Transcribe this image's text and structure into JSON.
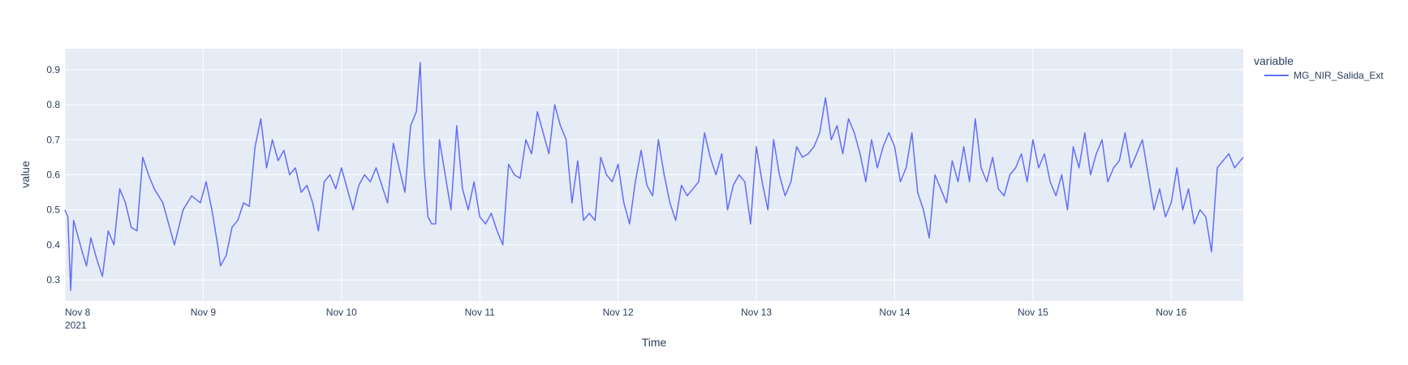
{
  "chart_data": {
    "type": "line",
    "title": "",
    "xlabel": "Time",
    "ylabel": "value",
    "legend": {
      "title": "variable",
      "placement": "right"
    },
    "grid": true,
    "colors": {
      "plot_background": "#e5ecf6",
      "grid": "#ffffff",
      "text": "#2a3f5f",
      "series": "#636efa"
    },
    "xlim": [
      "2021-11-08 00:00",
      "2021-11-16 12:30"
    ],
    "ylim": [
      0.24,
      0.96
    ],
    "x_ticks": [
      {
        "label": "Nov 8",
        "sublabel": "2021",
        "value": "2021-11-08"
      },
      {
        "label": "Nov 9",
        "value": "2021-11-09"
      },
      {
        "label": "Nov 10",
        "value": "2021-11-10"
      },
      {
        "label": "Nov 11",
        "value": "2021-11-11"
      },
      {
        "label": "Nov 12",
        "value": "2021-11-12"
      },
      {
        "label": "Nov 13",
        "value": "2021-11-13"
      },
      {
        "label": "Nov 14",
        "value": "2021-11-14"
      },
      {
        "label": "Nov 15",
        "value": "2021-11-15"
      },
      {
        "label": "Nov 16",
        "value": "2021-11-16"
      }
    ],
    "y_ticks": [
      {
        "label": "0.3",
        "value": 0.3
      },
      {
        "label": "0.4",
        "value": 0.4
      },
      {
        "label": "0.5",
        "value": 0.5
      },
      {
        "label": "0.6",
        "value": 0.6
      },
      {
        "label": "0.7",
        "value": 0.7
      },
      {
        "label": "0.8",
        "value": 0.8
      },
      {
        "label": "0.9",
        "value": 0.9
      }
    ],
    "series": [
      {
        "name": "MG_NIR_Salida_Ext",
        "x": [
          "2021-11-08 00:00",
          "2021-11-08 00:30",
          "2021-11-08 01:00",
          "2021-11-08 01:30",
          "2021-11-08 02:00",
          "2021-11-08 03:00",
          "2021-11-08 03:45",
          "2021-11-08 04:30",
          "2021-11-08 05:30",
          "2021-11-08 06:30",
          "2021-11-08 07:30",
          "2021-11-08 08:30",
          "2021-11-08 09:30",
          "2021-11-08 10:30",
          "2021-11-08 11:30",
          "2021-11-08 12:30",
          "2021-11-08 13:30",
          "2021-11-08 14:30",
          "2021-11-08 15:30",
          "2021-11-08 17:00",
          "2021-11-08 19:00",
          "2021-11-08 20:30",
          "2021-11-08 22:00",
          "2021-11-08 23:30",
          "2021-11-09 00:30",
          "2021-11-09 01:30",
          "2021-11-09 02:30",
          "2021-11-09 03:00",
          "2021-11-09 04:00",
          "2021-11-09 05:00",
          "2021-11-09 06:00",
          "2021-11-09 07:00",
          "2021-11-09 08:00",
          "2021-11-09 09:00",
          "2021-11-09 10:00",
          "2021-11-09 11:00",
          "2021-11-09 12:00",
          "2021-11-09 13:00",
          "2021-11-09 14:00",
          "2021-11-09 15:00",
          "2021-11-09 16:00",
          "2021-11-09 17:00",
          "2021-11-09 18:00",
          "2021-11-09 19:00",
          "2021-11-09 20:00",
          "2021-11-09 21:00",
          "2021-11-09 22:00",
          "2021-11-09 23:00",
          "2021-11-10 00:00",
          "2021-11-10 01:00",
          "2021-11-10 02:00",
          "2021-11-10 03:00",
          "2021-11-10 04:00",
          "2021-11-10 05:00",
          "2021-11-10 06:00",
          "2021-11-10 07:00",
          "2021-11-10 08:00",
          "2021-11-10 09:00",
          "2021-11-10 10:00",
          "2021-11-10 11:00",
          "2021-11-10 12:00",
          "2021-11-10 13:00",
          "2021-11-10 13:40",
          "2021-11-10 14:20",
          "2021-11-10 15:00",
          "2021-11-10 15:40",
          "2021-11-10 16:20",
          "2021-11-10 17:00",
          "2021-11-10 18:00",
          "2021-11-10 19:00",
          "2021-11-10 20:00",
          "2021-11-10 21:00",
          "2021-11-10 22:00",
          "2021-11-10 23:00",
          "2021-11-11 00:00",
          "2021-11-11 01:00",
          "2021-11-11 02:00",
          "2021-11-11 03:00",
          "2021-11-11 04:00",
          "2021-11-11 05:00",
          "2021-11-11 06:00",
          "2021-11-11 07:00",
          "2021-11-11 08:00",
          "2021-11-11 09:00",
          "2021-11-11 10:00",
          "2021-11-11 11:00",
          "2021-11-11 12:00",
          "2021-11-11 13:00",
          "2021-11-11 14:00",
          "2021-11-11 15:00",
          "2021-11-11 16:00",
          "2021-11-11 17:00",
          "2021-11-11 18:00",
          "2021-11-11 19:00",
          "2021-11-11 20:00",
          "2021-11-11 21:00",
          "2021-11-11 22:00",
          "2021-11-11 23:00",
          "2021-11-12 00:00",
          "2021-11-12 01:00",
          "2021-11-12 02:00",
          "2021-11-12 03:00",
          "2021-11-12 04:00",
          "2021-11-12 05:00",
          "2021-11-12 06:00",
          "2021-11-12 07:00",
          "2021-11-12 08:00",
          "2021-11-12 09:00",
          "2021-11-12 10:00",
          "2021-11-12 11:00",
          "2021-11-12 12:00",
          "2021-11-12 13:00",
          "2021-11-12 14:00",
          "2021-11-12 15:00",
          "2021-11-12 16:00",
          "2021-11-12 17:00",
          "2021-11-12 18:00",
          "2021-11-12 19:00",
          "2021-11-12 20:00",
          "2021-11-12 21:00",
          "2021-11-12 22:00",
          "2021-11-12 23:00",
          "2021-11-13 00:00",
          "2021-11-13 01:00",
          "2021-11-13 02:00",
          "2021-11-13 03:00",
          "2021-11-13 04:00",
          "2021-11-13 05:00",
          "2021-11-13 06:00",
          "2021-11-13 07:00",
          "2021-11-13 08:00",
          "2021-11-13 09:00",
          "2021-11-13 10:00",
          "2021-11-13 11:00",
          "2021-11-13 12:00",
          "2021-11-13 13:00",
          "2021-11-13 14:00",
          "2021-11-13 15:00",
          "2021-11-13 16:00",
          "2021-11-13 17:00",
          "2021-11-13 18:00",
          "2021-11-13 19:00",
          "2021-11-13 20:00",
          "2021-11-13 21:00",
          "2021-11-13 22:00",
          "2021-11-13 23:00",
          "2021-11-14 00:00",
          "2021-11-14 01:00",
          "2021-11-14 02:00",
          "2021-11-14 03:00",
          "2021-11-14 04:00",
          "2021-11-14 05:00",
          "2021-11-14 06:00",
          "2021-11-14 07:00",
          "2021-11-14 08:00",
          "2021-11-14 09:00",
          "2021-11-14 10:00",
          "2021-11-14 11:00",
          "2021-11-14 12:00",
          "2021-11-14 13:00",
          "2021-11-14 14:00",
          "2021-11-14 15:00",
          "2021-11-14 16:00",
          "2021-11-14 17:00",
          "2021-11-14 18:00",
          "2021-11-14 19:00",
          "2021-11-14 20:00",
          "2021-11-14 21:00",
          "2021-11-14 22:00",
          "2021-11-14 23:00",
          "2021-11-15 00:00",
          "2021-11-15 01:00",
          "2021-11-15 02:00",
          "2021-11-15 03:00",
          "2021-11-15 04:00",
          "2021-11-15 05:00",
          "2021-11-15 06:00",
          "2021-11-15 07:00",
          "2021-11-15 08:00",
          "2021-11-15 09:00",
          "2021-11-15 10:00",
          "2021-11-15 11:00",
          "2021-11-15 12:00",
          "2021-11-15 13:00",
          "2021-11-15 14:00",
          "2021-11-15 15:00",
          "2021-11-15 16:00",
          "2021-11-15 17:00",
          "2021-11-15 18:00",
          "2021-11-15 19:00",
          "2021-11-15 20:00",
          "2021-11-15 21:00",
          "2021-11-15 22:00",
          "2021-11-15 23:00",
          "2021-11-16 00:00",
          "2021-11-16 01:00",
          "2021-11-16 02:00",
          "2021-11-16 03:00",
          "2021-11-16 04:00",
          "2021-11-16 05:00",
          "2021-11-16 06:00",
          "2021-11-16 07:00",
          "2021-11-16 08:00",
          "2021-11-16 09:00",
          "2021-11-16 10:00",
          "2021-11-16 11:00",
          "2021-11-16 12:00",
          "2021-11-16 12:30"
        ],
        "y": [
          0.5,
          0.48,
          0.27,
          0.47,
          0.44,
          0.38,
          0.34,
          0.42,
          0.36,
          0.31,
          0.44,
          0.4,
          0.56,
          0.52,
          0.45,
          0.44,
          0.65,
          0.6,
          0.56,
          0.52,
          0.4,
          0.5,
          0.54,
          0.52,
          0.58,
          0.5,
          0.4,
          0.34,
          0.37,
          0.45,
          0.47,
          0.52,
          0.51,
          0.68,
          0.76,
          0.62,
          0.7,
          0.64,
          0.67,
          0.6,
          0.62,
          0.55,
          0.57,
          0.52,
          0.44,
          0.58,
          0.6,
          0.56,
          0.62,
          0.56,
          0.5,
          0.57,
          0.6,
          0.58,
          0.62,
          0.57,
          0.52,
          0.69,
          0.62,
          0.55,
          0.74,
          0.78,
          0.92,
          0.62,
          0.48,
          0.46,
          0.46,
          0.7,
          0.6,
          0.5,
          0.74,
          0.56,
          0.5,
          0.58,
          0.48,
          0.46,
          0.49,
          0.44,
          0.4,
          0.63,
          0.6,
          0.59,
          0.7,
          0.66,
          0.78,
          0.72,
          0.66,
          0.8,
          0.74,
          0.7,
          0.52,
          0.64,
          0.47,
          0.49,
          0.47,
          0.65,
          0.6,
          0.58,
          0.63,
          0.52,
          0.46,
          0.58,
          0.67,
          0.57,
          0.54,
          0.7,
          0.6,
          0.52,
          0.47,
          0.57,
          0.54,
          0.56,
          0.58,
          0.72,
          0.65,
          0.6,
          0.66,
          0.5,
          0.57,
          0.6,
          0.58,
          0.46,
          0.68,
          0.58,
          0.5,
          0.7,
          0.6,
          0.54,
          0.58,
          0.68,
          0.65,
          0.66,
          0.68,
          0.72,
          0.82,
          0.7,
          0.74,
          0.66,
          0.76,
          0.72,
          0.66,
          0.58,
          0.7,
          0.62,
          0.68,
          0.72,
          0.68,
          0.58,
          0.62,
          0.72,
          0.55,
          0.5,
          0.42,
          0.6,
          0.56,
          0.52,
          0.64,
          0.58,
          0.68,
          0.58,
          0.76,
          0.62,
          0.58,
          0.65,
          0.56,
          0.54,
          0.6,
          0.62,
          0.66,
          0.58,
          0.7,
          0.62,
          0.66,
          0.58,
          0.54,
          0.6,
          0.5,
          0.68,
          0.62,
          0.72,
          0.6,
          0.66,
          0.7,
          0.58,
          0.62,
          0.64,
          0.72,
          0.62,
          0.66,
          0.7,
          0.6,
          0.5,
          0.56,
          0.48,
          0.52,
          0.62,
          0.5,
          0.56,
          0.46,
          0.5,
          0.48,
          0.38,
          0.62,
          0.64,
          0.66,
          0.62,
          0.64,
          0.65
        ]
      }
    ]
  }
}
